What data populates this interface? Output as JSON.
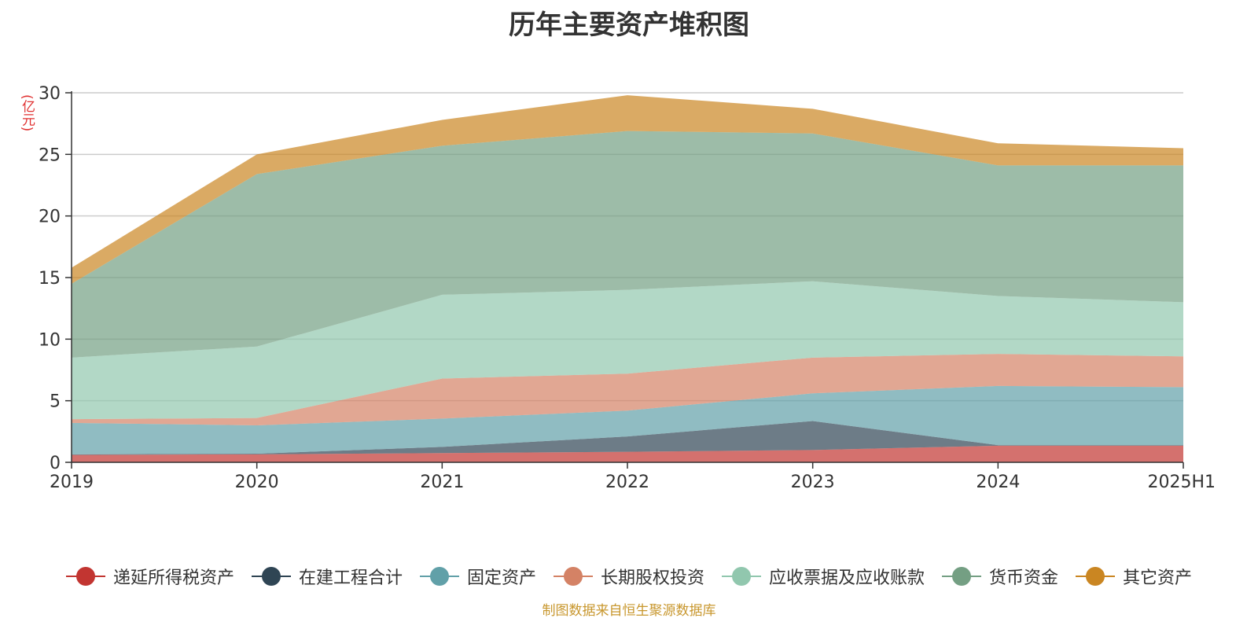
{
  "chart_data": {
    "type": "area",
    "stacked": true,
    "title": "历年主要资产堆积图",
    "y_unit": "(亿元)",
    "x": [
      "2019",
      "2020",
      "2021",
      "2022",
      "2023",
      "2024",
      "2025H1"
    ],
    "ylim": [
      0,
      30
    ],
    "yticks": [
      "0",
      "5",
      "10",
      "15",
      "20",
      "25",
      "30"
    ],
    "grid": true,
    "legend_position": "bottom",
    "series": [
      {
        "name": "递延所得税资产",
        "color": "#c23531",
        "values": [
          0.6,
          0.65,
          0.75,
          0.85,
          1.0,
          1.35,
          1.35
        ]
      },
      {
        "name": "在建工程合计",
        "color": "#2f4554",
        "values": [
          0.05,
          0.05,
          0.5,
          1.25,
          2.35,
          0.05,
          0.05
        ]
      },
      {
        "name": "固定资产",
        "color": "#61a0a8",
        "values": [
          2.55,
          2.3,
          2.3,
          2.1,
          2.25,
          4.8,
          4.7
        ]
      },
      {
        "name": "长期股权投资",
        "color": "#d48265",
        "values": [
          0.3,
          0.6,
          3.25,
          3.0,
          2.9,
          2.6,
          2.5
        ]
      },
      {
        "name": "应收票据及应收账款",
        "color": "#91c7ae",
        "values": [
          5.0,
          5.8,
          6.8,
          6.8,
          6.2,
          4.7,
          4.4
        ]
      },
      {
        "name": "货币资金",
        "color": "#749f83",
        "values": [
          6.0,
          14.0,
          12.1,
          12.9,
          12.0,
          10.6,
          11.1
        ]
      },
      {
        "name": "其它资产",
        "color": "#ca8622",
        "values": [
          1.3,
          1.6,
          2.1,
          2.9,
          2.0,
          1.8,
          1.4
        ]
      }
    ]
  },
  "source_note": "制图数据来自恒生聚源数据库"
}
